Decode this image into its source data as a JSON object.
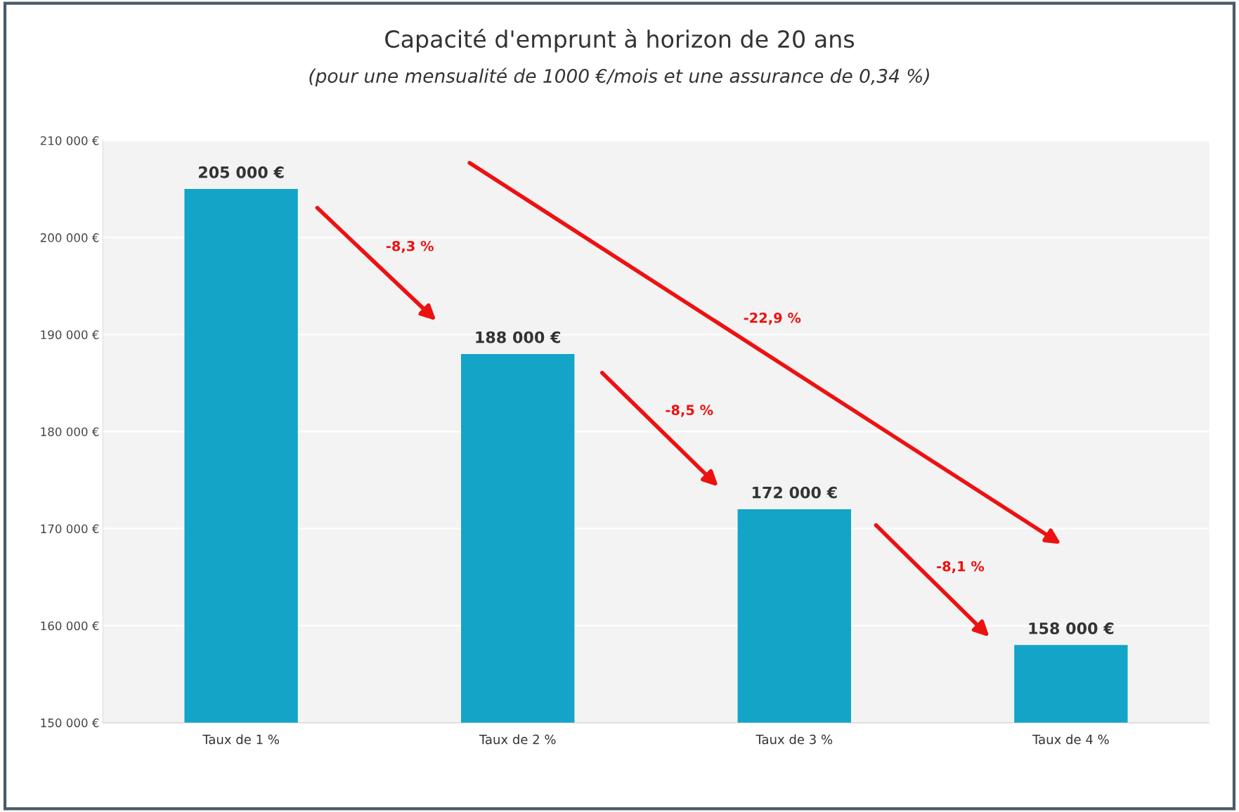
{
  "chart_data": {
    "type": "bar",
    "title": "Capacité d'emprunt à horizon de 20 ans",
    "subtitle": "(pour une mensualité de 1000 €/mois et une assurance de 0,34 %)",
    "categories": [
      "Taux de 1 %",
      "Taux de 2 %",
      "Taux de 3 %",
      "Taux de 4 %"
    ],
    "values": [
      205000,
      188000,
      172000,
      158000
    ],
    "color": "#13a4c7",
    "value_labels": [
      "205 000 €",
      "188 000 €",
      "172 000 €",
      "158 000 €"
    ],
    "annotations": [
      "-8,3 %",
      "-8,5 %",
      "-8,1 %",
      "-22,9 %"
    ],
    "ylim": [
      150000,
      210000
    ],
    "yticks": [
      {
        "value": 150000,
        "label": "150 000 €"
      },
      {
        "value": 160000,
        "label": "160 000 €"
      },
      {
        "value": 170000,
        "label": "170 000 €"
      },
      {
        "value": 180000,
        "label": "180 000 €"
      },
      {
        "value": 190000,
        "label": "190 000 €"
      },
      {
        "value": 200000,
        "label": "200 000 €"
      },
      {
        "value": 210000,
        "label": "210 000 €"
      }
    ],
    "grid": "y"
  }
}
